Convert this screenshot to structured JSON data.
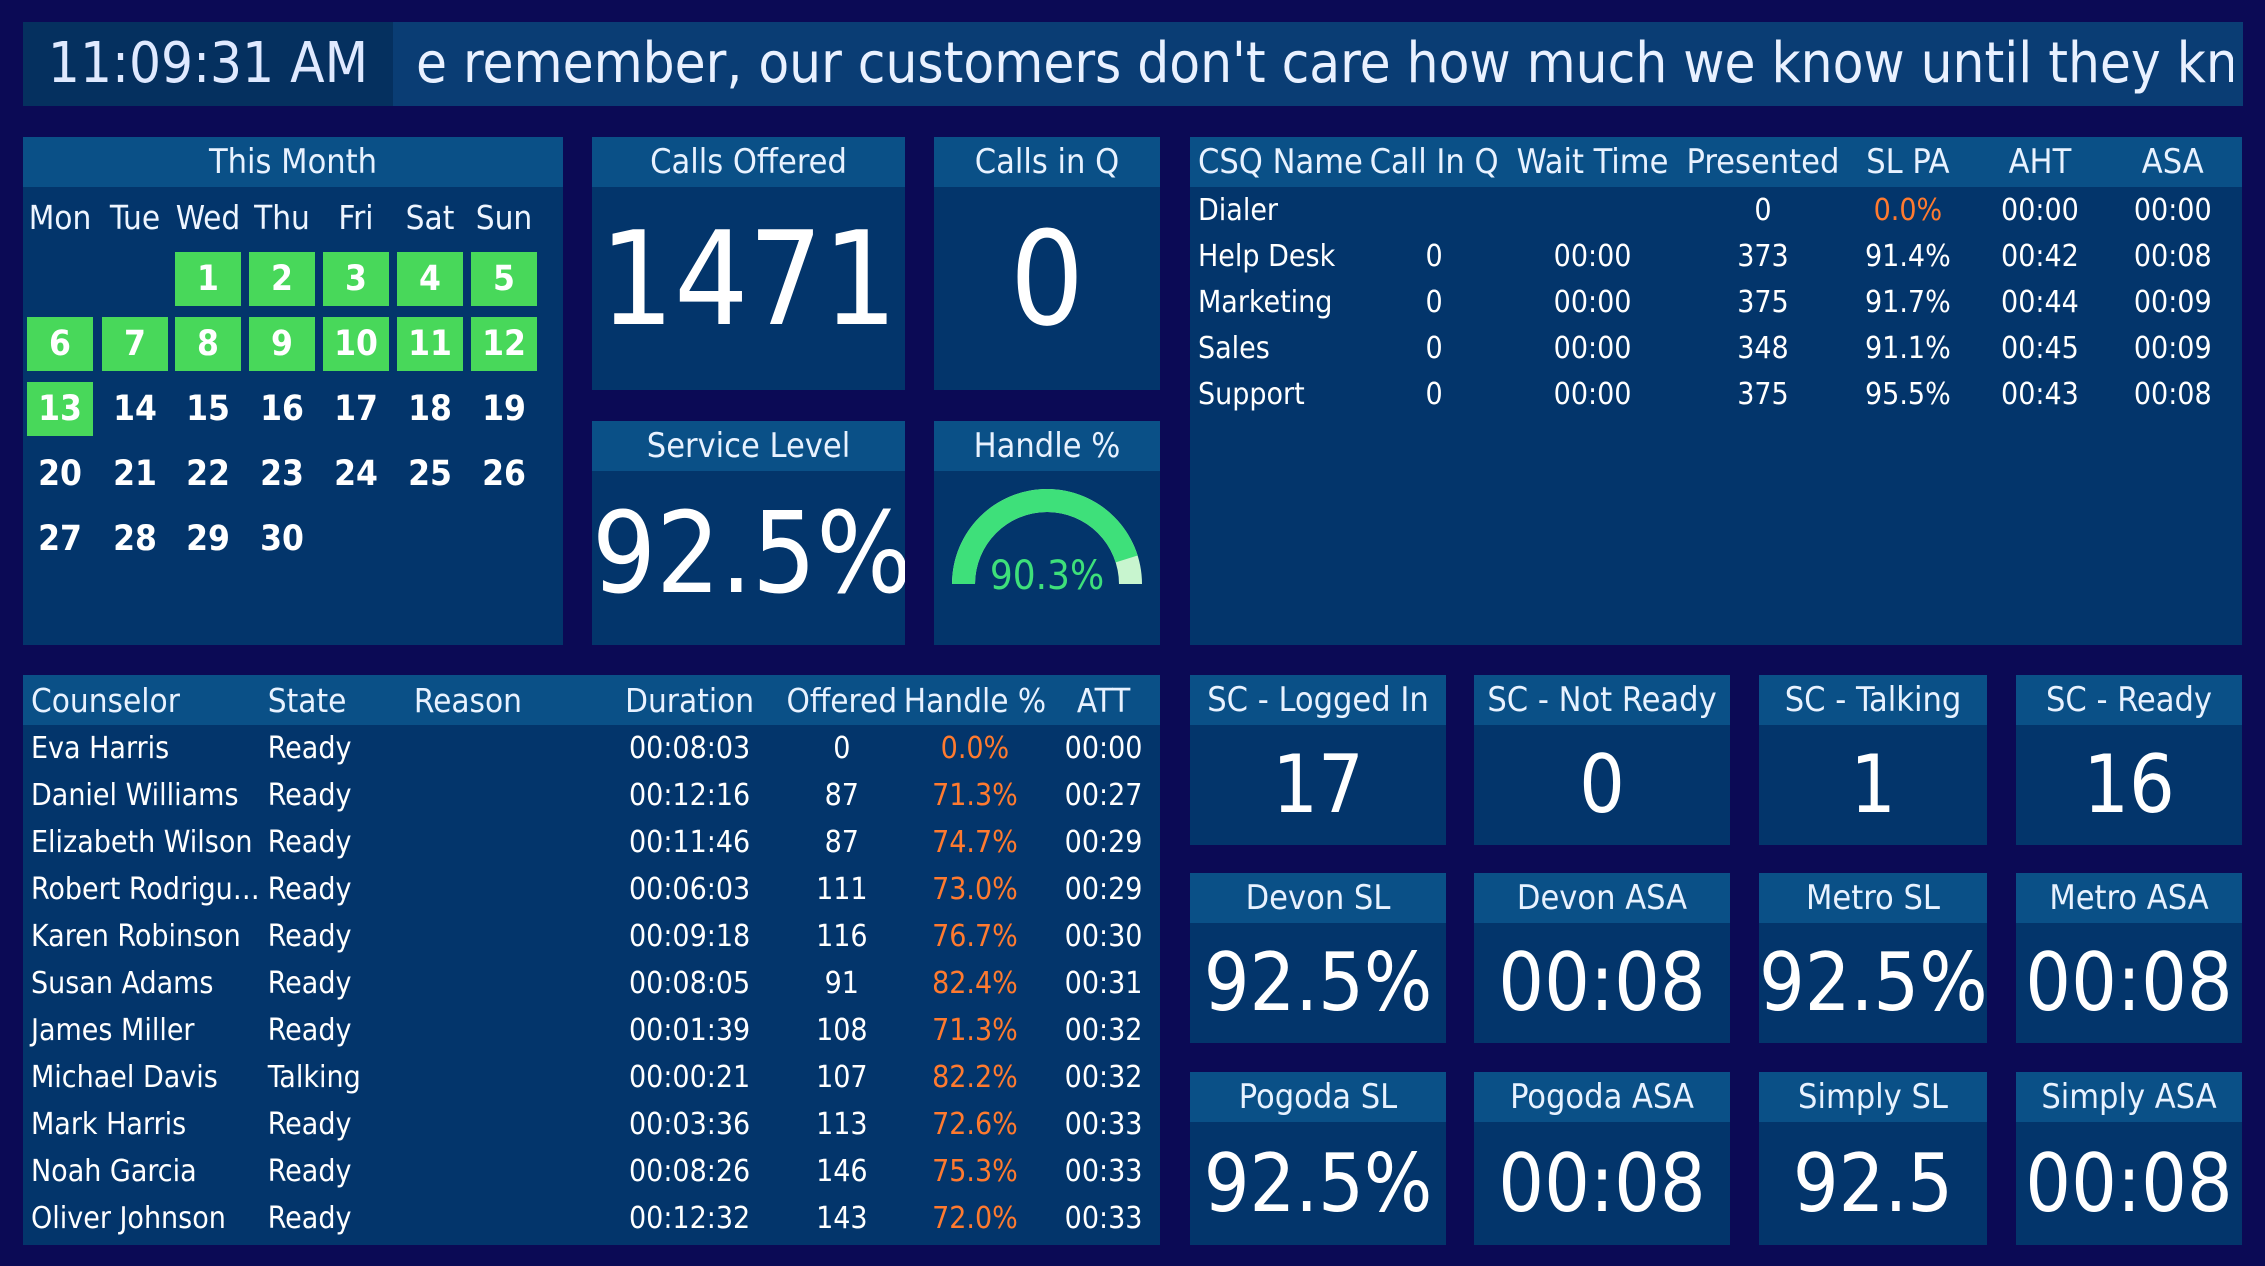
{
  "clock": "11:09:31 AM",
  "ticker_message": "e remember, our customers don't care how much we know until they know how",
  "calendar": {
    "title": "This Month",
    "weekdays": [
      "Mon",
      "Tue",
      "Wed",
      "Thu",
      "Fri",
      "Sat",
      "Sun"
    ],
    "weeks": [
      [
        "",
        "",
        "1",
        "2",
        "3",
        "4",
        "5"
      ],
      [
        "6",
        "7",
        "8",
        "9",
        "10",
        "11",
        "12"
      ],
      [
        "13",
        "14",
        "15",
        "16",
        "17",
        "18",
        "19"
      ],
      [
        "20",
        "21",
        "22",
        "23",
        "24",
        "25",
        "26"
      ],
      [
        "27",
        "28",
        "29",
        "30",
        "",
        "",
        ""
      ]
    ],
    "highlighted_days": [
      "1",
      "2",
      "3",
      "4",
      "5",
      "6",
      "7",
      "8",
      "9",
      "10",
      "11",
      "12",
      "13"
    ],
    "highlight_color": "#48d85a"
  },
  "calls_offered": {
    "title": "Calls Offered",
    "value": "1471"
  },
  "calls_in_q": {
    "title": "Calls in Q",
    "value": "0"
  },
  "service_level": {
    "title": "Service Level",
    "value": "92.5%"
  },
  "handle_pct": {
    "title": "Handle %",
    "value": "90.3%",
    "fraction": 0.903,
    "gauge_color": "#3ee07a"
  },
  "csq": {
    "headers": [
      "CSQ Name",
      "Call In Q",
      "Wait Time",
      "Presented",
      "SL PA",
      "AHT",
      "ASA"
    ],
    "rows": [
      [
        "Dialer",
        "",
        "",
        "0",
        "0.0%",
        "00:00",
        "00:00"
      ],
      [
        "Help Desk",
        "0",
        "00:00",
        "373",
        "91.4%",
        "00:42",
        "00:08"
      ],
      [
        "Marketing",
        "0",
        "00:00",
        "375",
        "91.7%",
        "00:44",
        "00:09"
      ],
      [
        "Sales",
        "0",
        "00:00",
        "348",
        "91.1%",
        "00:45",
        "00:09"
      ],
      [
        "Support",
        "0",
        "00:00",
        "375",
        "95.5%",
        "00:43",
        "00:08"
      ]
    ]
  },
  "counselors": {
    "headers": [
      "Counselor",
      "State",
      "Reason",
      "Duration",
      "Offered",
      "Handle %",
      "ATT"
    ],
    "rows": [
      [
        "Eva Harris",
        "Ready",
        "",
        "00:08:03",
        "0",
        "0.0%",
        "00:00"
      ],
      [
        "Daniel Williams",
        "Ready",
        "",
        "00:12:16",
        "87",
        "71.3%",
        "00:27"
      ],
      [
        "Elizabeth Wilson",
        "Ready",
        "",
        "00:11:46",
        "87",
        "74.7%",
        "00:29"
      ],
      [
        "Robert Rodrigu…",
        "Ready",
        "",
        "00:06:03",
        "111",
        "73.0%",
        "00:29"
      ],
      [
        "Karen Robinson",
        "Ready",
        "",
        "00:09:18",
        "116",
        "76.7%",
        "00:30"
      ],
      [
        "Susan Adams",
        "Ready",
        "",
        "00:08:05",
        "91",
        "82.4%",
        "00:31"
      ],
      [
        "James Miller",
        "Ready",
        "",
        "00:01:39",
        "108",
        "71.3%",
        "00:32"
      ],
      [
        "Michael Davis",
        "Talking",
        "",
        "00:00:21",
        "107",
        "82.2%",
        "00:32"
      ],
      [
        "Mark Harris",
        "Ready",
        "",
        "00:03:36",
        "113",
        "72.6%",
        "00:33"
      ],
      [
        "Noah Garcia",
        "Ready",
        "",
        "00:08:26",
        "146",
        "75.3%",
        "00:33"
      ],
      [
        "Oliver Johnson",
        "Ready",
        "",
        "00:12:32",
        "143",
        "72.0%",
        "00:33"
      ]
    ]
  },
  "sc_tiles": [
    {
      "title": "SC - Logged In",
      "value": "17"
    },
    {
      "title": "SC - Not Ready",
      "value": "0"
    },
    {
      "title": "SC - Talking",
      "value": "1"
    },
    {
      "title": "SC - Ready",
      "value": "16"
    }
  ],
  "metric_tiles_row1": [
    {
      "title": "Devon SL",
      "value": "92.5%"
    },
    {
      "title": "Devon ASA",
      "value": "00:08"
    },
    {
      "title": "Metro SL",
      "value": "92.5%"
    },
    {
      "title": "Metro ASA",
      "value": "00:08"
    }
  ],
  "metric_tiles_row2": [
    {
      "title": "Pogoda SL",
      "value": "92.5%"
    },
    {
      "title": "Pogoda ASA",
      "value": "00:08"
    },
    {
      "title": "Simply SL",
      "value": "92.5"
    },
    {
      "title": "Simply ASA",
      "value": "00:08"
    }
  ],
  "colors": {
    "background": "#0b0a55",
    "panel": "#03356b",
    "header": "#0a5087",
    "warning": "#ff7a2f"
  }
}
